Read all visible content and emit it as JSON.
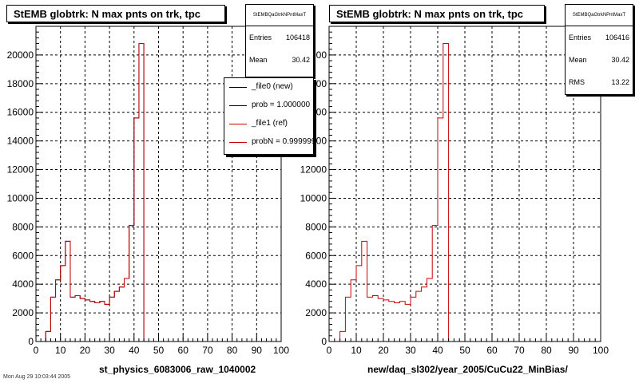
{
  "stamp": "Mon Aug 29 10:03:44 2005",
  "chart_data": [
    {
      "type": "histogram",
      "title": "StEMB globtrk: N max pnts on trk, tpc",
      "xlabel": "st_physics_6083006_raw_1040002",
      "xlim": [
        0,
        100
      ],
      "ylim": [
        0,
        22000
      ],
      "xticks": [
        0,
        10,
        20,
        30,
        40,
        50,
        60,
        70,
        80,
        90,
        100
      ],
      "yticks": [
        0,
        2000,
        4000,
        6000,
        8000,
        10000,
        12000,
        14000,
        16000,
        18000,
        20000
      ],
      "grid": true,
      "bin_edges": [
        0,
        2,
        4,
        6,
        8,
        10,
        12,
        14,
        16,
        18,
        20,
        22,
        24,
        26,
        28,
        30,
        32,
        34,
        36,
        38,
        40,
        42,
        44,
        46,
        48
      ],
      "series": [
        {
          "name": "_file0 (new)",
          "color": "#000000",
          "values": [
            0,
            0,
            700,
            3100,
            4300,
            5300,
            7000,
            3100,
            3200,
            3000,
            2900,
            2800,
            2700,
            2800,
            2600,
            3100,
            3500,
            3800,
            4400,
            8100,
            15600,
            20800,
            0,
            0
          ]
        },
        {
          "name": "_file1 (ref)",
          "color": "#cc0000",
          "values": [
            0,
            0,
            700,
            3100,
            4300,
            5300,
            7000,
            3100,
            3200,
            3000,
            2900,
            2800,
            2700,
            2800,
            2600,
            3100,
            3500,
            3800,
            4400,
            8100,
            15600,
            20800,
            0,
            0
          ]
        }
      ],
      "stats": {
        "name": "StEMBQaGtrkNPntMaxT",
        "rows": [
          {
            "label": "Entries",
            "value": "106418"
          },
          {
            "label": "Mean",
            "value": "30.42"
          }
        ]
      },
      "legend": [
        {
          "text": "_file0 (new)",
          "color": "#000000"
        },
        {
          "text": "prob = 1.000000",
          "color": "#000000"
        },
        {
          "text": "_file1 (ref)",
          "color": "#cc0000"
        },
        {
          "text": "probN = 0.999999",
          "color": "#cc0000"
        }
      ]
    },
    {
      "type": "histogram",
      "title": "StEMB globtrk: N max pnts on trk, tpc",
      "xlabel": "new/daq_sl302/year_2005/CuCu22_MinBias/",
      "xlim": [
        0,
        100
      ],
      "ylim": [
        0,
        22000
      ],
      "xticks": [
        0,
        10,
        20,
        30,
        40,
        50,
        60,
        70,
        80,
        90,
        100
      ],
      "yticks": [
        0,
        2000,
        4000,
        6000,
        8000,
        10000,
        12000,
        14000,
        16000,
        18000,
        20000
      ],
      "grid": true,
      "bin_edges": [
        0,
        2,
        4,
        6,
        8,
        10,
        12,
        14,
        16,
        18,
        20,
        22,
        24,
        26,
        28,
        30,
        32,
        34,
        36,
        38,
        40,
        42,
        44,
        46,
        48
      ],
      "series": [
        {
          "name": "",
          "color": "#cc0000",
          "values": [
            0,
            0,
            700,
            3100,
            4300,
            5300,
            7000,
            3100,
            3200,
            3000,
            2900,
            2800,
            2700,
            2800,
            2600,
            3100,
            3500,
            3800,
            4400,
            8100,
            15600,
            20800,
            0,
            0
          ]
        }
      ],
      "stats": {
        "name": "StEMBQaGtrkNPntMaxT",
        "rows": [
          {
            "label": "Entries",
            "value": "106416"
          },
          {
            "label": "Mean",
            "value": "30.42"
          },
          {
            "label": "RMS",
            "value": "13.22"
          }
        ]
      },
      "legend": []
    }
  ]
}
